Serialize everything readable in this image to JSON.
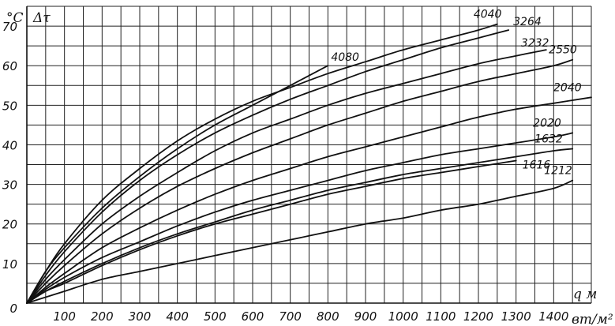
{
  "chart_data": {
    "type": "line",
    "title": "",
    "xlabel": "q м",
    "x_unit": "вт/м²",
    "ylabel": "Δτ",
    "y_unit": "°C",
    "xlim": [
      0,
      1500
    ],
    "ylim": [
      0,
      75
    ],
    "grid": true,
    "x_ticks": [
      {
        "value": 0,
        "label": "0"
      },
      {
        "value": 100,
        "label": "100"
      },
      {
        "value": 200,
        "label": "200"
      },
      {
        "value": 300,
        "label": "300"
      },
      {
        "value": 400,
        "label": "400"
      },
      {
        "value": 500,
        "label": "500"
      },
      {
        "value": 600,
        "label": "600"
      },
      {
        "value": 700,
        "label": "700"
      },
      {
        "value": 800,
        "label": "800"
      },
      {
        "value": 900,
        "label": "900"
      },
      {
        "value": 1000,
        "label": "1000"
      },
      {
        "value": 1100,
        "label": "1100"
      },
      {
        "value": 1200,
        "label": "1200"
      },
      {
        "value": 1300,
        "label": "1300"
      },
      {
        "value": 1400,
        "label": "1400"
      }
    ],
    "y_ticks": [
      {
        "value": 0,
        "label": "0"
      },
      {
        "value": 10,
        "label": "10"
      },
      {
        "value": 20,
        "label": "20"
      },
      {
        "value": 30,
        "label": "30"
      },
      {
        "value": 40,
        "label": "40"
      },
      {
        "value": 50,
        "label": "50"
      },
      {
        "value": 60,
        "label": "60"
      },
      {
        "value": 70,
        "label": "70"
      }
    ],
    "series": [
      {
        "name": "4080",
        "x": [
          0,
          50,
          100,
          200,
          300,
          400,
          500,
          600,
          700,
          800
        ],
        "y": [
          0,
          8,
          14,
          24,
          32,
          39,
          45,
          50,
          55,
          60
        ]
      },
      {
        "name": "4040",
        "x": [
          0,
          50,
          100,
          200,
          300,
          400,
          500,
          600,
          700,
          800,
          900,
          1000,
          1100,
          1200,
          1250
        ],
        "y": [
          0,
          8,
          15,
          26,
          34,
          41,
          46.5,
          51,
          54.5,
          58,
          61,
          64,
          66.5,
          69,
          70.5
        ]
      },
      {
        "name": "3264",
        "x": [
          0,
          50,
          100,
          200,
          300,
          400,
          500,
          600,
          700,
          800,
          900,
          1000,
          1100,
          1200,
          1280
        ],
        "y": [
          0,
          7,
          13,
          23,
          31,
          37.5,
          43,
          47.5,
          51.5,
          55,
          58.5,
          61.5,
          64.5,
          67,
          69
        ]
      },
      {
        "name": "3232",
        "x": [
          0,
          50,
          100,
          200,
          300,
          400,
          500,
          600,
          700,
          800,
          900,
          1000,
          1100,
          1200,
          1300,
          1380
        ],
        "y": [
          0,
          6,
          11,
          20,
          27,
          33,
          38.5,
          43,
          46.5,
          50,
          53,
          55.5,
          58,
          60.5,
          62.5,
          64
        ]
      },
      {
        "name": "2550",
        "x": [
          0,
          50,
          100,
          200,
          300,
          400,
          500,
          600,
          700,
          800,
          900,
          1000,
          1100,
          1200,
          1300,
          1400,
          1450
        ],
        "y": [
          0,
          5,
          9.5,
          17.5,
          24,
          29.5,
          34,
          38,
          41.5,
          45,
          48,
          51,
          53.5,
          56,
          58,
          60,
          61.5
        ]
      },
      {
        "name": "2040",
        "x": [
          0,
          50,
          100,
          200,
          300,
          400,
          500,
          600,
          700,
          800,
          900,
          1000,
          1100,
          1200,
          1300,
          1400,
          1500
        ],
        "y": [
          0,
          4,
          7.5,
          14,
          19,
          23.5,
          27.5,
          31,
          34,
          37,
          39.5,
          42,
          44.5,
          47,
          49,
          50.5,
          52
        ]
      },
      {
        "name": "2020",
        "x": [
          0,
          50,
          100,
          200,
          300,
          400,
          500,
          600,
          700,
          800,
          900,
          1000,
          1100,
          1200,
          1300,
          1400,
          1450
        ],
        "y": [
          0,
          3.5,
          6.5,
          11.5,
          15.5,
          19.5,
          23,
          26,
          28.5,
          31,
          33.5,
          35.5,
          37.5,
          39,
          40.5,
          42,
          43
        ]
      },
      {
        "name": "1632",
        "x": [
          0,
          50,
          100,
          200,
          300,
          400,
          500,
          600,
          700,
          800,
          900,
          1000,
          1100,
          1200,
          1300,
          1400,
          1450
        ],
        "y": [
          0,
          3,
          5.5,
          10,
          14,
          17.5,
          20.5,
          23.5,
          26,
          28.5,
          30.5,
          32.5,
          34,
          35.5,
          37,
          38.5,
          39
        ]
      },
      {
        "name": "1616",
        "x": [
          0,
          50,
          100,
          200,
          300,
          400,
          500,
          600,
          700,
          800,
          900,
          1000,
          1100,
          1200,
          1300
        ],
        "y": [
          0,
          3,
          5,
          9.5,
          13.5,
          17,
          20,
          22.5,
          25,
          27.5,
          29.5,
          31.5,
          33,
          34.5,
          36
        ]
      },
      {
        "name": "1212",
        "x": [
          0,
          50,
          100,
          200,
          300,
          400,
          500,
          600,
          700,
          800,
          900,
          1000,
          1100,
          1200,
          1300,
          1400,
          1450
        ],
        "y": [
          0,
          1.5,
          3,
          6,
          8,
          10,
          12,
          14,
          16,
          18,
          20,
          21.5,
          23.5,
          25,
          27,
          29,
          31
        ]
      }
    ]
  }
}
